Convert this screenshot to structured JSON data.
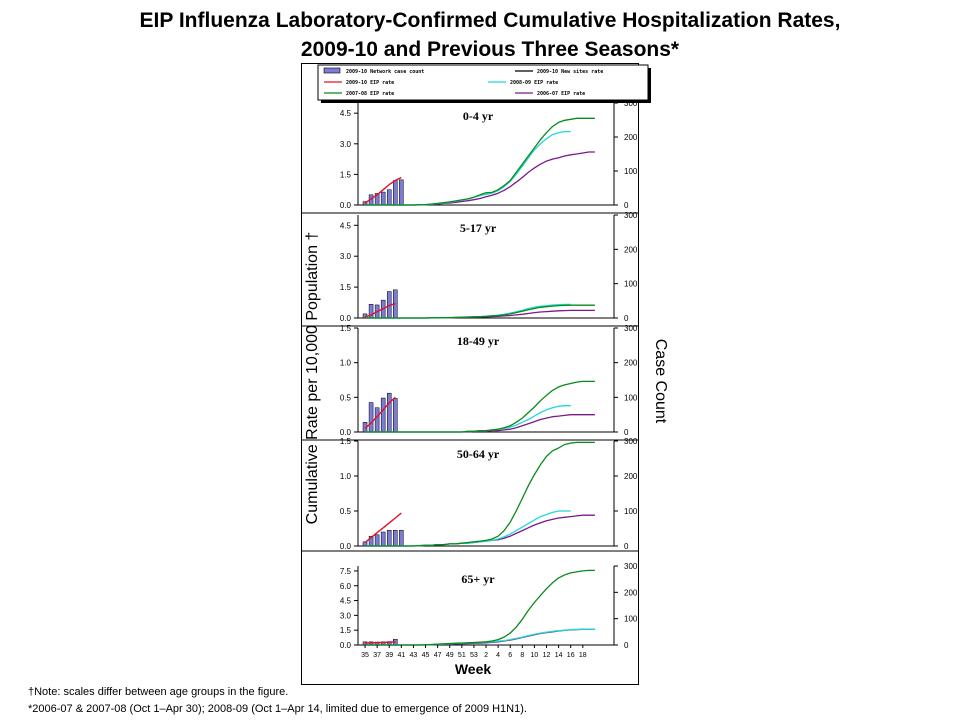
{
  "title_line1": "EIP Influenza Laboratory-Confirmed Cumulative Hospitalization Rates,",
  "title_line2": "2009-10 and Previous Three Seasons*",
  "notes": {
    "note1": "†Note: scales differ between age groups in the figure.",
    "note2": "*2006-07 & 2007-08 (Oct 1–Apr 30); 2008-09 (Oct 1–Apr 14, limited due to emergence of 2009 H1N1)."
  },
  "chart_data": {
    "type": "line",
    "ylabel_left": "Cumulative Rate per 10,000 Population †",
    "ylabel_right": "Case Count",
    "xlabel": "Week",
    "x_tick_labels": [
      "35",
      "37",
      "39",
      "41",
      "43",
      "45",
      "47",
      "49",
      "51",
      "53",
      "2",
      "4",
      "6",
      "8",
      "10",
      "12",
      "14",
      "16",
      "18"
    ],
    "legend": [
      {
        "name": "2009-10 Network case count",
        "color": "#7b7bd8",
        "kind": "bar"
      },
      {
        "name": "2009-10 New sites rate",
        "color": "#000000",
        "kind": "line"
      },
      {
        "name": "2009-10 EIP rate",
        "color": "#e0102a",
        "kind": "line"
      },
      {
        "name": "2008-09 EIP rate",
        "color": "#20d8d8",
        "kind": "line"
      },
      {
        "name": "2007-08 EIP rate",
        "color": "#0a8a1a",
        "kind": "line"
      },
      {
        "name": "2006-07 EIP rate",
        "color": "#7a1a8a",
        "kind": "line"
      }
    ],
    "panels": [
      {
        "label": "0-4 yr",
        "y_left_ticks": [
          "0.0",
          "1.5",
          "3.0",
          "4.5"
        ],
        "y_left_max": 5.0,
        "y_right_ticks": [
          "0",
          "100",
          "200",
          "300"
        ],
        "y_right_max": 300,
        "bars": [
          10,
          30,
          34,
          38,
          45,
          72,
          74
        ],
        "rate_2009_10": [
          0.1,
          0.3,
          0.5,
          0.75,
          1.0,
          1.2,
          1.35
        ],
        "rate_2007_08": [
          0,
          0,
          0,
          0,
          0,
          0,
          0,
          0,
          0,
          0.01,
          0.02,
          0.05,
          0.08,
          0.12,
          0.15,
          0.2,
          0.25,
          0.3,
          0.38,
          0.5,
          0.6,
          0.62,
          0.75,
          0.95,
          1.2,
          1.6,
          2.0,
          2.4,
          2.8,
          3.2,
          3.55,
          3.85,
          4.05,
          4.15,
          4.2,
          4.25,
          4.25,
          4.25,
          4.25
        ],
        "rate_2008_09": [
          0,
          0,
          0,
          0,
          0,
          0,
          0,
          0,
          0,
          0.01,
          0.02,
          0.04,
          0.07,
          0.1,
          0.14,
          0.18,
          0.24,
          0.3,
          0.38,
          0.46,
          0.52,
          0.58,
          0.7,
          0.9,
          1.15,
          1.5,
          1.9,
          2.3,
          2.7,
          3.0,
          3.25,
          3.45,
          3.55,
          3.6,
          3.6
        ],
        "rate_2006_07": [
          0,
          0,
          0,
          0,
          0,
          0,
          0,
          0,
          0,
          0.01,
          0.02,
          0.03,
          0.05,
          0.08,
          0.1,
          0.13,
          0.17,
          0.21,
          0.26,
          0.32,
          0.4,
          0.48,
          0.58,
          0.72,
          0.9,
          1.12,
          1.35,
          1.6,
          1.82,
          2.0,
          2.15,
          2.25,
          2.32,
          2.4,
          2.46,
          2.5,
          2.55,
          2.6,
          2.6
        ]
      },
      {
        "label": "5-17 yr",
        "y_left_ticks": [
          "0.0",
          "1.5",
          "3.0",
          "4.5"
        ],
        "y_left_max": 5.0,
        "y_right_ticks": [
          "0",
          "100",
          "200",
          "300"
        ],
        "y_right_max": 300,
        "bars": [
          12,
          40,
          38,
          52,
          77,
          82,
          0
        ],
        "rate_2009_10": [
          0.05,
          0.15,
          0.3,
          0.45,
          0.6,
          0.7
        ],
        "rate_2007_08": [
          0,
          0,
          0,
          0,
          0,
          0,
          0,
          0,
          0,
          0,
          0,
          0.01,
          0.01,
          0.02,
          0.02,
          0.03,
          0.04,
          0.05,
          0.06,
          0.07,
          0.08,
          0.1,
          0.12,
          0.15,
          0.2,
          0.26,
          0.33,
          0.4,
          0.46,
          0.52,
          0.55,
          0.58,
          0.6,
          0.61,
          0.62,
          0.62,
          0.62,
          0.62,
          0.62
        ],
        "rate_2008_09": [
          0,
          0,
          0,
          0,
          0,
          0,
          0,
          0,
          0,
          0,
          0,
          0.01,
          0.01,
          0.02,
          0.02,
          0.03,
          0.04,
          0.05,
          0.06,
          0.07,
          0.09,
          0.11,
          0.14,
          0.18,
          0.24,
          0.3,
          0.38,
          0.46,
          0.52,
          0.57,
          0.6,
          0.63,
          0.65,
          0.66,
          0.66
        ],
        "rate_2006_07": [
          0,
          0,
          0,
          0,
          0,
          0,
          0,
          0,
          0,
          0,
          0,
          0.01,
          0.01,
          0.01,
          0.02,
          0.02,
          0.03,
          0.03,
          0.04,
          0.05,
          0.06,
          0.07,
          0.08,
          0.1,
          0.12,
          0.15,
          0.18,
          0.22,
          0.26,
          0.29,
          0.31,
          0.33,
          0.35,
          0.36,
          0.37,
          0.37,
          0.37,
          0.37,
          0.37
        ]
      },
      {
        "label": "18-49 yr",
        "y_left_ticks": [
          "0.0",
          "0.5",
          "1.0",
          "1.5"
        ],
        "y_left_max": 1.5,
        "y_right_ticks": [
          "0",
          "100",
          "200",
          "300"
        ],
        "y_right_max": 300,
        "bars": [
          28,
          85,
          70,
          98,
          112,
          97,
          0
        ],
        "rate_2009_10": [
          0.05,
          0.13,
          0.22,
          0.32,
          0.42,
          0.5
        ],
        "rate_2007_08": [
          0,
          0,
          0,
          0,
          0,
          0,
          0,
          0,
          0,
          0,
          0,
          0,
          0,
          0,
          0,
          0,
          0,
          0.01,
          0.01,
          0.02,
          0.02,
          0.03,
          0.04,
          0.06,
          0.09,
          0.14,
          0.2,
          0.28,
          0.36,
          0.45,
          0.53,
          0.6,
          0.65,
          0.68,
          0.7,
          0.72,
          0.73,
          0.73,
          0.73
        ],
        "rate_2008_09": [
          0,
          0,
          0,
          0,
          0,
          0,
          0,
          0,
          0,
          0,
          0,
          0,
          0,
          0,
          0,
          0,
          0,
          0.01,
          0.01,
          0.02,
          0.02,
          0.03,
          0.04,
          0.05,
          0.07,
          0.1,
          0.14,
          0.18,
          0.23,
          0.28,
          0.32,
          0.35,
          0.37,
          0.38,
          0.38
        ],
        "rate_2006_07": [
          0,
          0,
          0,
          0,
          0,
          0,
          0,
          0,
          0,
          0,
          0,
          0,
          0,
          0,
          0,
          0,
          0,
          0,
          0.01,
          0.01,
          0.01,
          0.02,
          0.02,
          0.03,
          0.04,
          0.06,
          0.09,
          0.12,
          0.15,
          0.18,
          0.2,
          0.22,
          0.23,
          0.24,
          0.25,
          0.25,
          0.25,
          0.25,
          0.25
        ]
      },
      {
        "label": "50-64 yr",
        "y_left_ticks": [
          "0.0",
          "0.5",
          "1.0",
          "1.5"
        ],
        "y_left_max": 1.5,
        "y_right_ticks": [
          "0",
          "100",
          "200",
          "300"
        ],
        "y_right_max": 300,
        "bars": [
          12,
          28,
          32,
          40,
          45,
          45,
          45
        ],
        "rate_2009_10": [
          0.05,
          0.12,
          0.19,
          0.26,
          0.33,
          0.4,
          0.47
        ],
        "rate_2007_08": [
          0,
          0,
          0,
          0,
          0,
          0,
          0,
          0,
          0,
          0.005,
          0.01,
          0.01,
          0.02,
          0.02,
          0.03,
          0.03,
          0.04,
          0.05,
          0.06,
          0.07,
          0.08,
          0.1,
          0.14,
          0.22,
          0.34,
          0.5,
          0.68,
          0.86,
          1.02,
          1.16,
          1.28,
          1.36,
          1.4,
          1.45,
          1.47,
          1.48,
          1.48,
          1.48,
          1.48
        ],
        "rate_2008_09": [
          0,
          0,
          0,
          0,
          0,
          0,
          0,
          0,
          0,
          0.005,
          0.01,
          0.01,
          0.02,
          0.02,
          0.03,
          0.03,
          0.04,
          0.04,
          0.05,
          0.06,
          0.07,
          0.08,
          0.1,
          0.13,
          0.17,
          0.22,
          0.27,
          0.32,
          0.37,
          0.42,
          0.45,
          0.48,
          0.5,
          0.5,
          0.5
        ],
        "rate_2006_07": [
          0,
          0,
          0,
          0,
          0,
          0,
          0,
          0,
          0,
          0.005,
          0.01,
          0.01,
          0.02,
          0.02,
          0.03,
          0.03,
          0.04,
          0.04,
          0.05,
          0.06,
          0.07,
          0.08,
          0.09,
          0.11,
          0.14,
          0.18,
          0.22,
          0.26,
          0.3,
          0.33,
          0.36,
          0.38,
          0.4,
          0.41,
          0.42,
          0.43,
          0.44,
          0.44,
          0.44
        ]
      },
      {
        "label": "65+ yr",
        "y_left_ticks": [
          "0.0",
          "1.5",
          "3.0",
          "4.5",
          "6.0",
          "7.5"
        ],
        "y_left_max": 8.0,
        "y_right_ticks": [
          "0",
          "100",
          "200",
          "300"
        ],
        "y_right_max": 300,
        "bars": [
          12,
          12,
          11,
          12,
          13,
          22,
          0
        ],
        "rate_2009_10": [
          0.2,
          0.22,
          0.24,
          0.26,
          0.28,
          0.3
        ],
        "rate_2007_08": [
          0,
          0,
          0,
          0,
          0,
          0,
          0,
          0,
          0,
          0,
          0.02,
          0.05,
          0.08,
          0.12,
          0.15,
          0.18,
          0.2,
          0.22,
          0.25,
          0.28,
          0.32,
          0.4,
          0.55,
          0.8,
          1.2,
          1.8,
          2.6,
          3.5,
          4.3,
          5.0,
          5.7,
          6.3,
          6.8,
          7.1,
          7.3,
          7.4,
          7.5,
          7.55,
          7.55
        ],
        "rate_2008_09": [
          0,
          0,
          0,
          0,
          0,
          0,
          0,
          0,
          0,
          0,
          0.02,
          0.04,
          0.06,
          0.09,
          0.12,
          0.15,
          0.18,
          0.2,
          0.22,
          0.25,
          0.28,
          0.32,
          0.38,
          0.45,
          0.55,
          0.67,
          0.8,
          0.95,
          1.08,
          1.2,
          1.3,
          1.38,
          1.45,
          1.5,
          1.55,
          1.58,
          1.6,
          1.6,
          1.6
        ],
        "rate_2006_07": [
          0,
          0,
          0,
          0,
          0,
          0,
          0,
          0,
          0,
          0,
          0.01,
          0.03,
          0.05,
          0.07,
          0.09,
          0.11,
          0.13,
          0.15,
          0.17,
          0.19,
          0.22,
          0.26,
          0.32,
          0.4,
          0.5,
          0.62,
          0.76,
          0.9,
          1.04,
          1.16,
          1.26,
          1.34,
          1.42,
          1.48,
          1.53,
          1.56,
          1.58,
          1.6,
          1.6
        ]
      }
    ]
  }
}
